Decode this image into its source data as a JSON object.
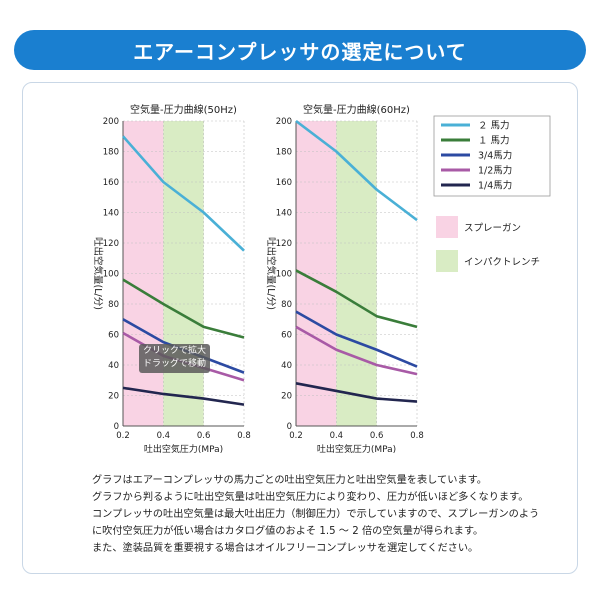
{
  "header": {
    "title": "エアーコンプレッサの選定について",
    "bg_color": "#1a7fd0"
  },
  "tooltip": {
    "line1": "クリックで拡大",
    "line2": "ドラッグで移動"
  },
  "legend": {
    "series": [
      {
        "name": "２ 馬力",
        "color": "#4ab0d6"
      },
      {
        "name": "１ 馬力",
        "color": "#3a7d3a"
      },
      {
        "name": "3/4馬力",
        "color": "#2c4aa2"
      },
      {
        "name": "1/2馬力",
        "color": "#a85aa6"
      },
      {
        "name": "1/4馬力",
        "color": "#22264f"
      }
    ],
    "zones": [
      {
        "name": "スプレーガン",
        "color": "#f9d3e4"
      },
      {
        "name": "インパクトレンチ",
        "color": "#d9ecc4"
      }
    ]
  },
  "description": [
    "グラフはエアーコンプレッサの馬力ごとの吐出空気圧力と吐出空気量を表しています。",
    "グラフから判るように吐出空気量は吐出空気圧力により変わり、圧力が低いほど多くなります。",
    "コンプレッサの吐出空気量は最大吐出圧力（制御圧力）で示していますので、スプレーガンのよう",
    "に吹付空気圧力が低い場合はカタログ値のおよそ 1.5 ～ 2 倍の空気量が得られます。",
    "また、塗装品質を重要視する場合はオイルフリーコンプレッサを選定してください。"
  ],
  "chart_data": [
    {
      "type": "line",
      "title": "空気量-圧力曲線(50Hz)",
      "xlabel": "吐出空気圧力(MPa)",
      "ylabel": "吐出空気量(L/分)",
      "xlim": [
        0.2,
        0.8
      ],
      "ylim": [
        0,
        200
      ],
      "xticks": [
        "0.2",
        "0.4",
        "0.6",
        "0.8"
      ],
      "yticks": [
        "0",
        "20",
        "40",
        "60",
        "80",
        "100",
        "120",
        "140",
        "160",
        "180",
        "200"
      ],
      "zones": [
        {
          "name": "スプレーガン",
          "range": [
            0.2,
            0.4
          ]
        },
        {
          "name": "インパクトレンチ",
          "range": [
            0.4,
            0.6
          ]
        }
      ],
      "x": [
        0.2,
        0.4,
        0.6,
        0.8
      ],
      "series": [
        {
          "name": "２ 馬力",
          "values": [
            190,
            160,
            140,
            115
          ]
        },
        {
          "name": "１ 馬力",
          "values": [
            96,
            80,
            65,
            58
          ]
        },
        {
          "name": "3/4馬力",
          "values": [
            70,
            55,
            45,
            35
          ]
        },
        {
          "name": "1/2馬力",
          "values": [
            61,
            46,
            38,
            30
          ]
        },
        {
          "name": "1/4馬力",
          "values": [
            25,
            21,
            18,
            14
          ]
        }
      ]
    },
    {
      "type": "line",
      "title": "空気量-圧力曲線(60Hz)",
      "xlabel": "吐出空気圧力(MPa)",
      "ylabel": "吐出空気量(L/分)",
      "xlim": [
        0.2,
        0.8
      ],
      "ylim": [
        0,
        200
      ],
      "xticks": [
        "0.2",
        "0.4",
        "0.6",
        "0.8"
      ],
      "yticks": [
        "0",
        "20",
        "40",
        "60",
        "80",
        "100",
        "120",
        "140",
        "160",
        "180",
        "200"
      ],
      "zones": [
        {
          "name": "スプレーガン",
          "range": [
            0.2,
            0.4
          ]
        },
        {
          "name": "インパクトレンチ",
          "range": [
            0.4,
            0.6
          ]
        }
      ],
      "x": [
        0.2,
        0.4,
        0.6,
        0.8
      ],
      "series": [
        {
          "name": "２ 馬力",
          "values": [
            200,
            180,
            155,
            135
          ]
        },
        {
          "name": "１ 馬力",
          "values": [
            102,
            88,
            72,
            65
          ]
        },
        {
          "name": "3/4馬力",
          "values": [
            75,
            60,
            50,
            39
          ]
        },
        {
          "name": "1/2馬力",
          "values": [
            65,
            50,
            40,
            34
          ]
        },
        {
          "name": "1/4馬力",
          "values": [
            28,
            23,
            18,
            16
          ]
        }
      ]
    }
  ]
}
